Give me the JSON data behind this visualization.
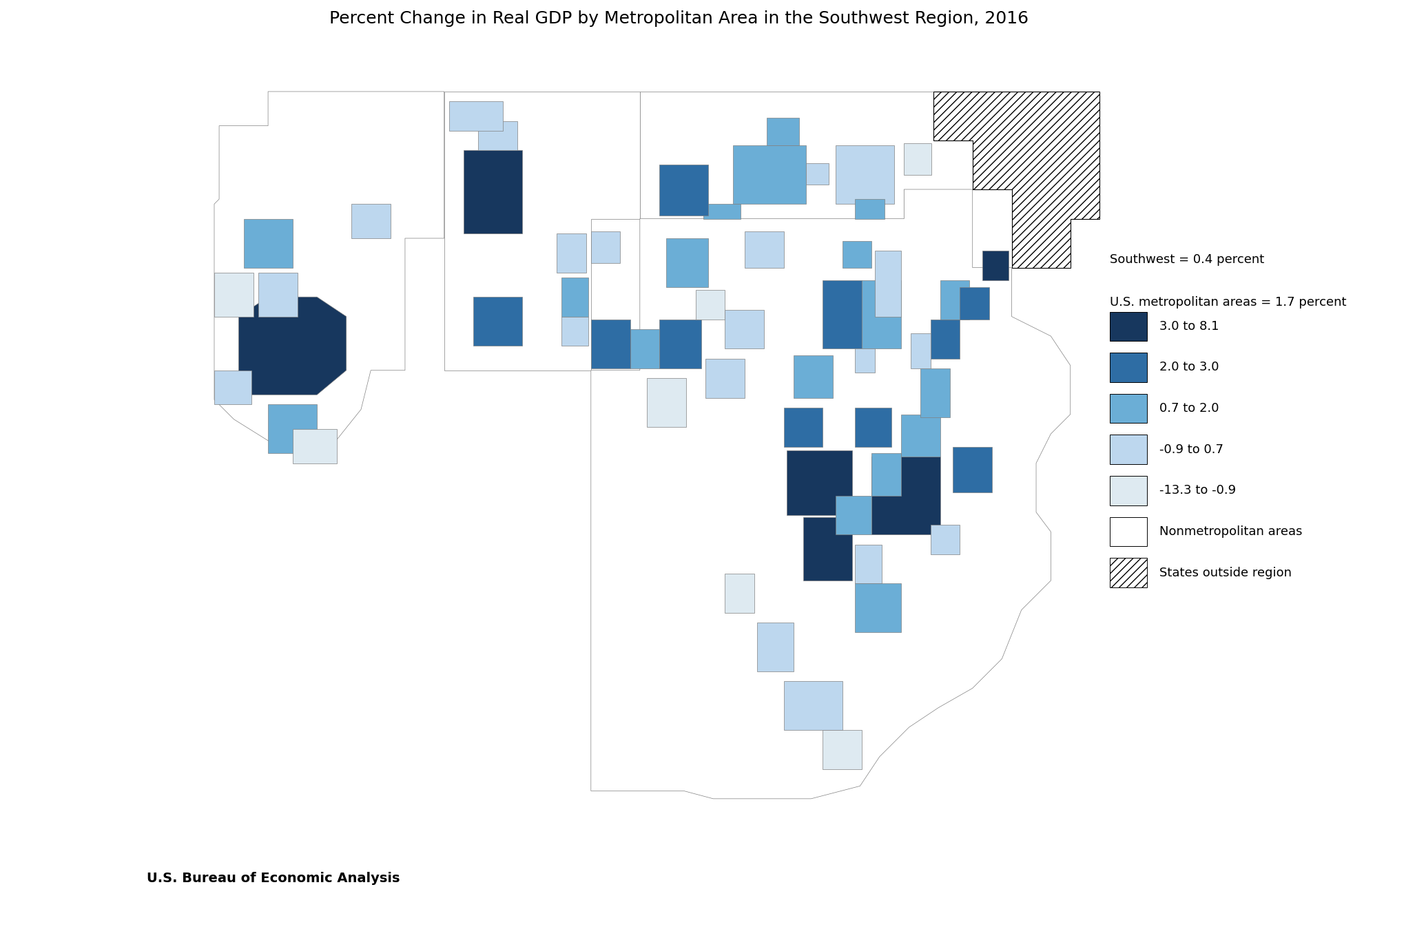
{
  "title": "Percent Change in Real GDP by Metropolitan Area in the Southwest Region, 2016",
  "subtitle_line1": "Southwest = 0.4 percent",
  "subtitle_line2": "U.S. metropolitan areas = 1.7 percent",
  "source": "U.S. Bureau of Economic Analysis",
  "legend_labels": [
    "3.0 to 8.1",
    "2.0 to 3.0",
    "0.7 to 2.0",
    "-0.9 to 0.7",
    "-13.3 to -0.9",
    "Nonmetropolitan areas",
    "States outside region"
  ],
  "title_color": "#000000",
  "colors": {
    "cat1": "#17375E",
    "cat2": "#2E6DA4",
    "cat3": "#6BAED6",
    "cat4": "#BDD7EE",
    "cat5": "#DEEAF1",
    "nonmetro": "#FFFFFF",
    "border": "#808080",
    "background": "#FFFFFF"
  },
  "title_fontsize": 18,
  "source_fontsize": 14,
  "legend_fontsize": 13
}
